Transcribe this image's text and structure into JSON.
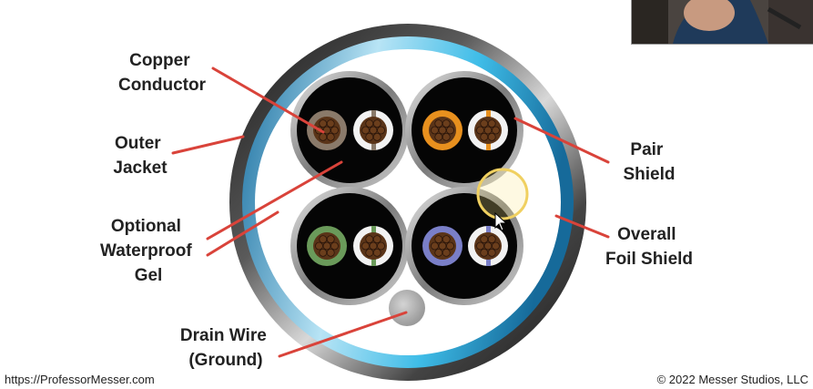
{
  "labels": {
    "copper_conductor": [
      "Copper",
      "Conductor"
    ],
    "outer_jacket": [
      "Outer",
      "Jacket"
    ],
    "optional_gel": [
      "Optional",
      "Waterproof",
      "Gel"
    ],
    "drain_wire": [
      "Drain Wire",
      "(Ground)"
    ],
    "pair_shield": [
      "Pair",
      "Shield"
    ],
    "overall_foil_shield": [
      "Overall",
      "Foil Shield"
    ]
  },
  "footer": {
    "left": "https://ProfessorMesser.com",
    "right": "© 2022 Messer Studios, LLC"
  },
  "colors": {
    "label_text": "#222222",
    "callout_line": "#d9433a",
    "outer_jacket": "#2b2b2b",
    "foil_shield": "#2aa3d8",
    "pair_shield": "#9a9a9a",
    "copper": "#5a3418",
    "pair_orange": "#e8901e",
    "pair_green": "#6a9a5a",
    "pair_blue": "#7a7fc8",
    "pair_brown": "#8a7a6a",
    "cursor_highlight": "#f0d060"
  },
  "icons": [
    "mouse-cursor-icon",
    "cursor-highlight-ring"
  ]
}
